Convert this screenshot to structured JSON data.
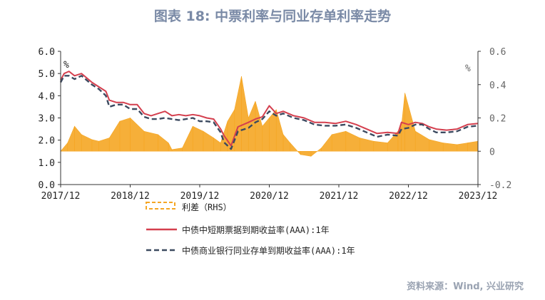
{
  "title": "图表 18: 中票利率与同业存单利率走势",
  "source": "资料来源：Wind, 兴业研究",
  "chart_data": {
    "type": "line",
    "title": "图表 18: 中票利率与同业存单利率走势",
    "x_ticks": [
      "2017/12",
      "2018/12",
      "2019/12",
      "2020/12",
      "2021/12",
      "2022/12",
      "2023/12"
    ],
    "x_range": [
      "2017/12",
      "2023/12"
    ],
    "y_left": {
      "ticks": [
        "0.0",
        "1.0",
        "2.0",
        "3.0",
        "4.0",
        "5.0",
        "6.0"
      ],
      "range": [
        0,
        6
      ],
      "unit": "%"
    },
    "y_right": {
      "ticks": [
        "-0.2",
        "0",
        "0.2",
        "0.4",
        "0.6"
      ],
      "range": [
        -0.2,
        0.6
      ],
      "unit": "%"
    },
    "grid": false,
    "legend": {
      "placement": "bottom-center"
    },
    "series": [
      {
        "name": "利差（RHS）",
        "axis": "right",
        "style": "dashed-area",
        "color": "#f5a623",
        "x": [
          0,
          0.1,
          0.2,
          0.3,
          0.45,
          0.55,
          0.7,
          0.85,
          1.0,
          1.2,
          1.4,
          1.55,
          1.6,
          1.75,
          1.9,
          2.05,
          2.2,
          2.3,
          2.4,
          2.5,
          2.6,
          2.7,
          2.8,
          2.9,
          3.0,
          3.1,
          3.2,
          3.3,
          3.45,
          3.6,
          3.75,
          3.9,
          4.1,
          4.3,
          4.5,
          4.7,
          4.85,
          4.9,
          4.95,
          5.1,
          5.3,
          5.5,
          5.7,
          5.85,
          6.0
        ],
        "values": [
          0.0,
          0.05,
          0.15,
          0.1,
          0.07,
          0.06,
          0.08,
          0.18,
          0.2,
          0.12,
          0.1,
          0.05,
          0.01,
          0.02,
          0.15,
          0.12,
          0.08,
          0.05,
          0.18,
          0.25,
          0.45,
          0.2,
          0.3,
          0.15,
          0.2,
          0.25,
          0.1,
          0.05,
          -0.02,
          -0.03,
          0.02,
          0.1,
          0.12,
          0.08,
          0.06,
          0.05,
          0.12,
          0.15,
          0.35,
          0.12,
          0.07,
          0.05,
          0.04,
          0.05,
          0.06
        ]
      },
      {
        "name": "中债中短期票据到期收益率(AAA):1年",
        "axis": "left",
        "style": "solid",
        "color": "#d43f4e",
        "x": [
          0,
          0.05,
          0.12,
          0.2,
          0.3,
          0.45,
          0.55,
          0.65,
          0.7,
          0.8,
          0.9,
          1.0,
          1.1,
          1.2,
          1.3,
          1.4,
          1.5,
          1.6,
          1.7,
          1.8,
          1.9,
          2.0,
          2.1,
          2.2,
          2.3,
          2.35,
          2.45,
          2.55,
          2.7,
          2.8,
          2.9,
          3.0,
          3.1,
          3.2,
          3.35,
          3.5,
          3.65,
          3.8,
          3.95,
          4.1,
          4.25,
          4.4,
          4.55,
          4.7,
          4.85,
          4.9,
          5.0,
          5.1,
          5.2,
          5.3,
          5.4,
          5.55,
          5.7,
          5.85,
          6.0
        ],
        "values": [
          4.7,
          5.0,
          5.1,
          4.9,
          5.0,
          4.6,
          4.4,
          4.2,
          3.8,
          3.7,
          3.7,
          3.6,
          3.6,
          3.2,
          3.1,
          3.2,
          3.3,
          3.1,
          3.15,
          3.1,
          3.15,
          3.1,
          3.0,
          2.95,
          2.5,
          2.2,
          1.75,
          2.6,
          2.8,
          2.95,
          3.05,
          3.55,
          3.2,
          3.3,
          3.1,
          3.0,
          2.8,
          2.8,
          2.75,
          2.85,
          2.7,
          2.5,
          2.3,
          2.35,
          2.3,
          2.8,
          2.7,
          2.8,
          2.75,
          2.6,
          2.5,
          2.45,
          2.5,
          2.7,
          2.75
        ]
      },
      {
        "name": "中债商业银行同业存单到期收益率(AAA):1年",
        "axis": "left",
        "style": "dashed",
        "color": "#3c4a60",
        "x": [
          0,
          0.05,
          0.12,
          0.2,
          0.3,
          0.45,
          0.55,
          0.65,
          0.7,
          0.8,
          0.9,
          1.0,
          1.1,
          1.2,
          1.3,
          1.4,
          1.5,
          1.6,
          1.7,
          1.8,
          1.9,
          2.0,
          2.1,
          2.2,
          2.3,
          2.35,
          2.45,
          2.55,
          2.7,
          2.8,
          2.9,
          3.0,
          3.1,
          3.2,
          3.35,
          3.5,
          3.65,
          3.8,
          3.95,
          4.1,
          4.25,
          4.4,
          4.55,
          4.7,
          4.85,
          4.9,
          5.0,
          5.1,
          5.2,
          5.3,
          5.4,
          5.55,
          5.7,
          5.85,
          6.0
        ],
        "values": [
          4.6,
          4.9,
          4.9,
          4.75,
          4.9,
          4.5,
          4.3,
          4.0,
          3.5,
          3.6,
          3.6,
          3.4,
          3.4,
          3.05,
          2.95,
          2.95,
          3.0,
          2.95,
          2.9,
          2.95,
          3.0,
          2.85,
          2.85,
          2.8,
          2.35,
          1.9,
          1.6,
          2.4,
          2.55,
          2.8,
          2.95,
          3.3,
          3.1,
          3.2,
          3.0,
          2.9,
          2.7,
          2.65,
          2.65,
          2.7,
          2.55,
          2.35,
          2.15,
          2.25,
          2.2,
          2.5,
          2.55,
          2.7,
          2.7,
          2.5,
          2.35,
          2.35,
          2.4,
          2.6,
          2.65
        ]
      }
    ]
  }
}
